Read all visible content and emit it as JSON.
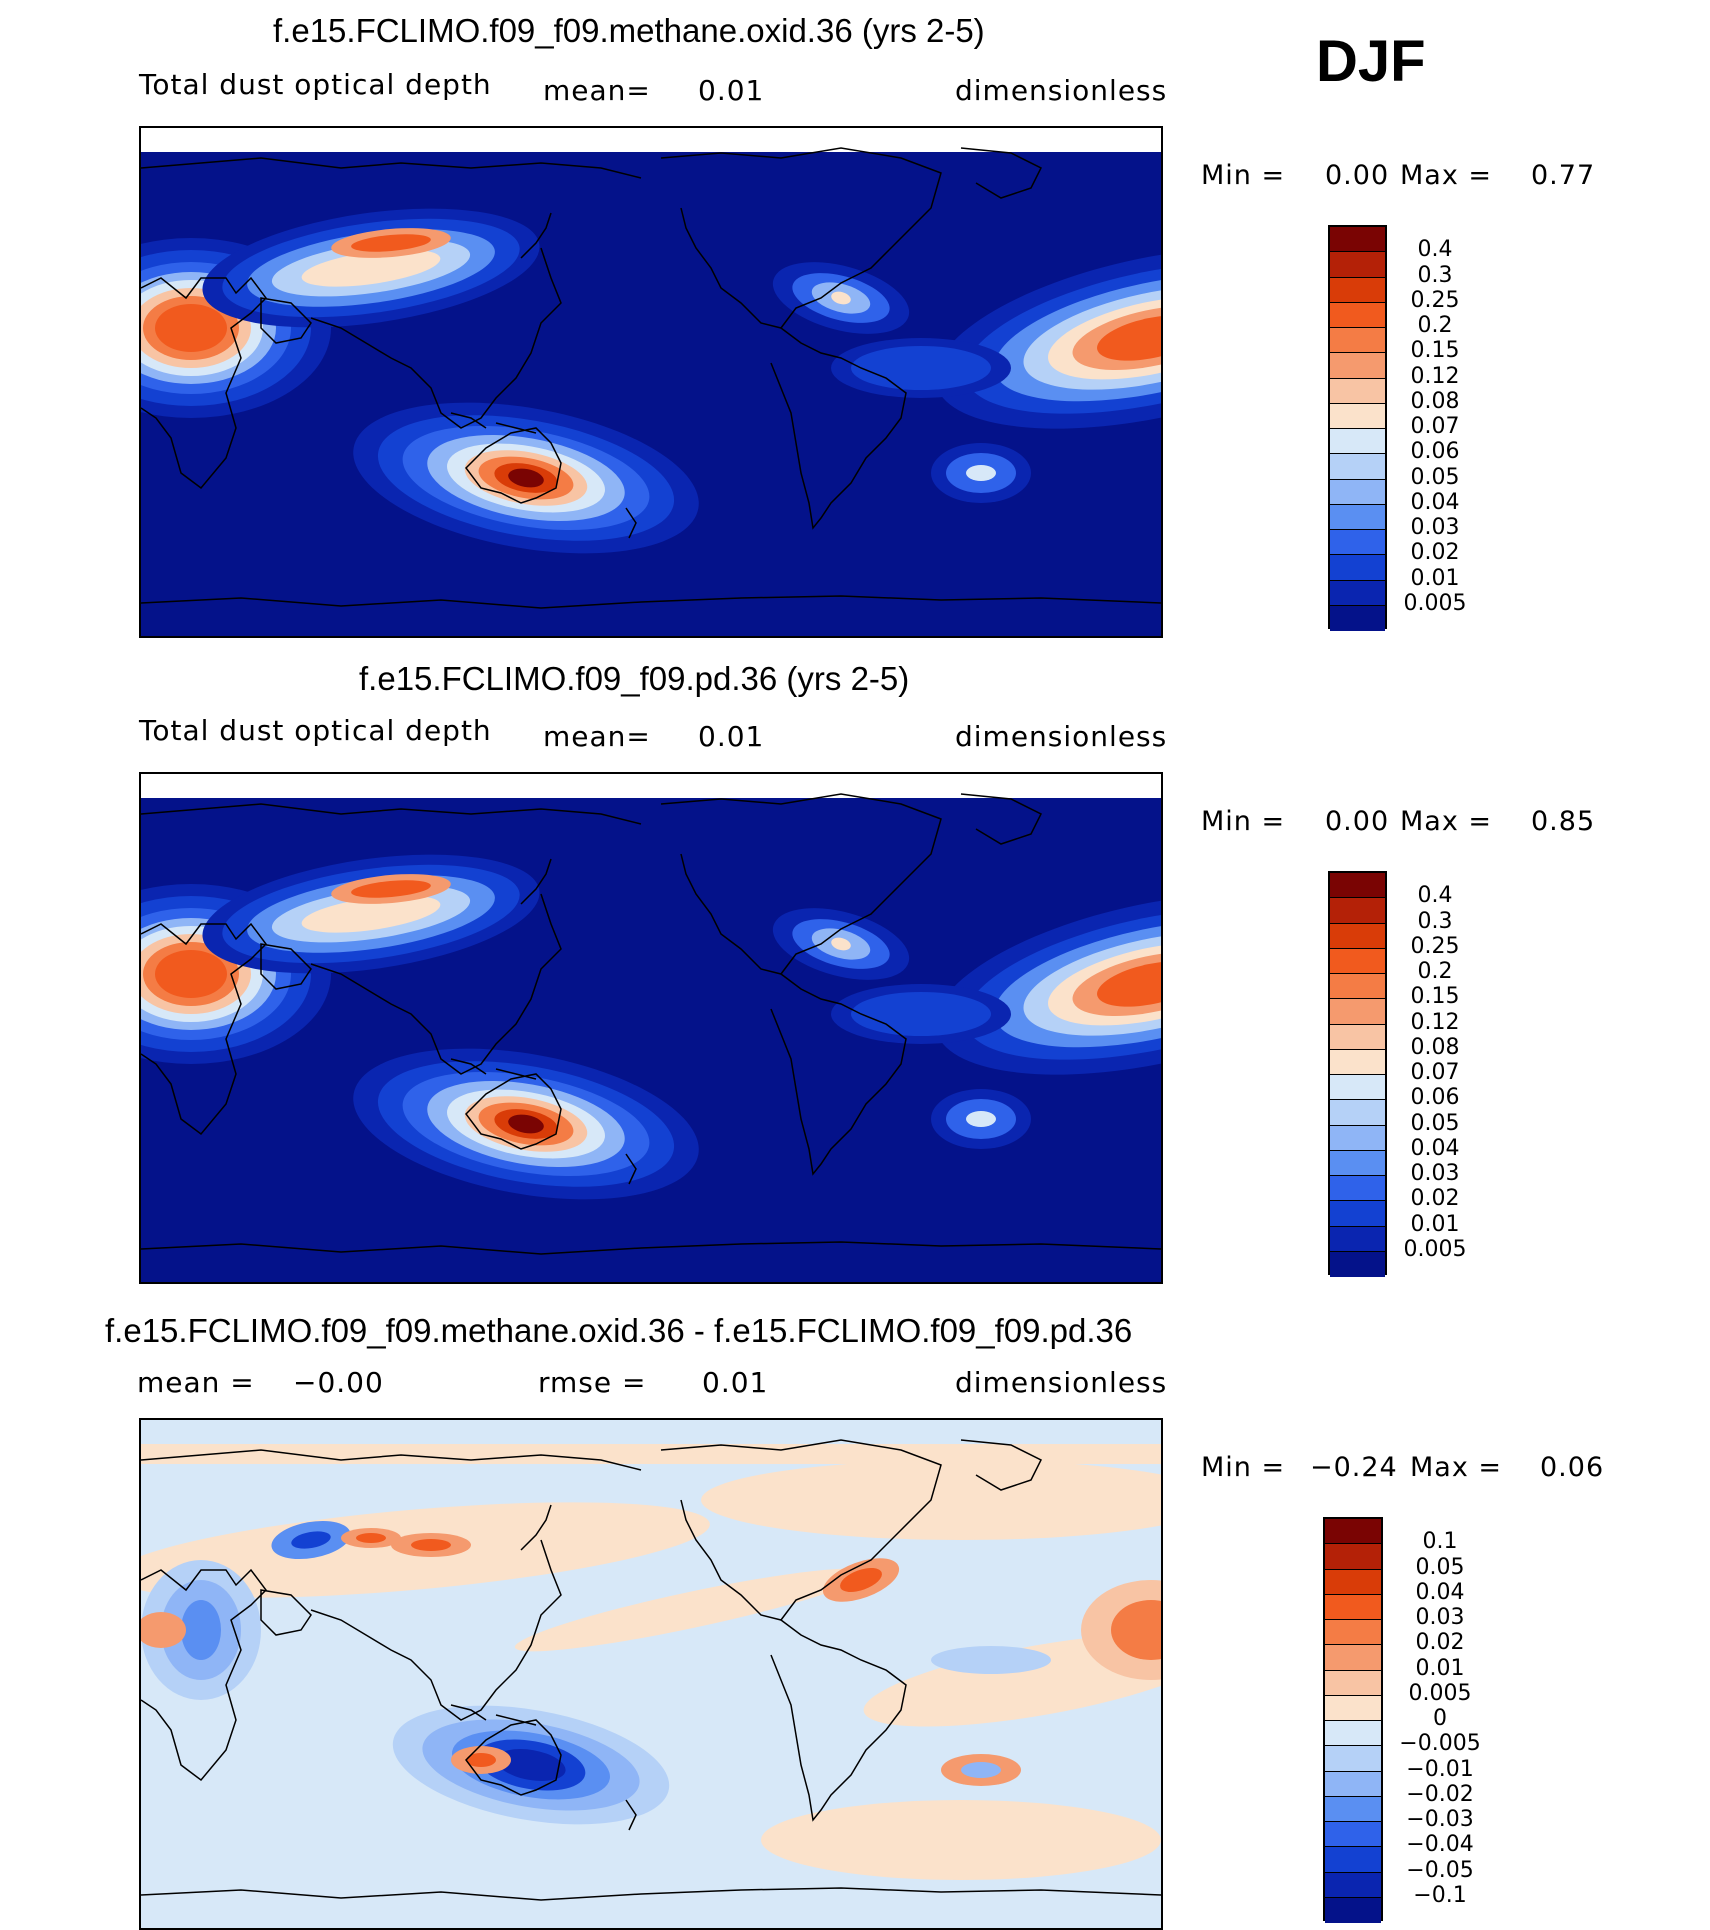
{
  "season": "DJF",
  "panels": [
    {
      "title": "f.e15.FCLIMO.f09_f09.methane.oxid.36 (yrs 2-5)",
      "variable": "Total dust optical depth",
      "stat1_label": "mean=",
      "stat1_value": "0.01",
      "units": "dimensionless",
      "min_label": "Min =",
      "min_value": "0.00",
      "max_label": "Max =",
      "max_value": "0.77",
      "levels": [
        "0.4",
        "0.3",
        "0.25",
        "0.2",
        "0.15",
        "0.12",
        "0.08",
        "0.07",
        "0.06",
        "0.05",
        "0.04",
        "0.03",
        "0.02",
        "0.01",
        "0.005"
      ],
      "colors": [
        "#7a0403",
        "#b42107",
        "#d93c08",
        "#f15a1e",
        "#f47c45",
        "#f59a6e",
        "#f8c4a4",
        "#fbe2cb",
        "#d7e8f8",
        "#b5d1f7",
        "#8fb5f6",
        "#5a8ff2",
        "#2f62ea",
        "#1341d2",
        "#0a25b0",
        "#04128a"
      ],
      "field": "base"
    },
    {
      "title": "f.e15.FCLIMO.f09_f09.pd.36 (yrs 2-5)",
      "variable": "Total dust optical depth",
      "stat1_label": "mean=",
      "stat1_value": "0.01",
      "units": "dimensionless",
      "min_label": "Min =",
      "min_value": "0.00",
      "max_label": "Max =",
      "max_value": "0.85",
      "levels": [
        "0.4",
        "0.3",
        "0.25",
        "0.2",
        "0.15",
        "0.12",
        "0.08",
        "0.07",
        "0.06",
        "0.05",
        "0.04",
        "0.03",
        "0.02",
        "0.01",
        "0.005"
      ],
      "colors": [
        "#7a0403",
        "#b42107",
        "#d93c08",
        "#f15a1e",
        "#f47c45",
        "#f59a6e",
        "#f8c4a4",
        "#fbe2cb",
        "#d7e8f8",
        "#b5d1f7",
        "#8fb5f6",
        "#5a8ff2",
        "#2f62ea",
        "#1341d2",
        "#0a25b0",
        "#04128a"
      ],
      "field": "base"
    },
    {
      "title": "f.e15.FCLIMO.f09_f09.methane.oxid.36 - f.e15.FCLIMO.f09_f09.pd.36",
      "variable": "",
      "stat1_label": "mean =",
      "stat1_value": "−0.00",
      "stat2_label": "rmse =",
      "stat2_value": "0.01",
      "units": "dimensionless",
      "min_label": "Min =",
      "min_value": "−0.24",
      "max_label": "Max =",
      "max_value": "0.06",
      "levels": [
        "0.1",
        "0.05",
        "0.04",
        "0.03",
        "0.02",
        "0.01",
        "0.005",
        "0",
        "−0.005",
        "−0.01",
        "−0.02",
        "−0.03",
        "−0.04",
        "−0.05",
        "−0.1"
      ],
      "colors": [
        "#7a0403",
        "#b42107",
        "#d93c08",
        "#f15a1e",
        "#f47c45",
        "#f59a6e",
        "#f8c4a4",
        "#fbe2cb",
        "#d7e8f8",
        "#b5d1f7",
        "#8fb5f6",
        "#5a8ff2",
        "#2f62ea",
        "#1341d2",
        "#0a25b0",
        "#04128a"
      ],
      "field": "diff"
    }
  ]
}
